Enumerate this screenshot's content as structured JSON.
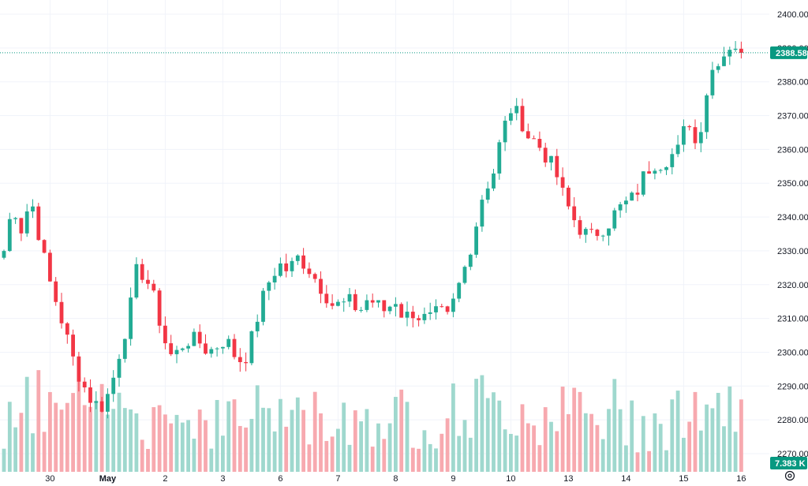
{
  "colors": {
    "up": "#22ab94",
    "down": "#f23645",
    "volume_up": "#9fd8ce",
    "volume_down": "#f7a9af",
    "price_tag": "#089981",
    "grid": "#f0f3fa",
    "text": "#131722"
  },
  "icons": {
    "settings": "gear-icon"
  },
  "chart_data": {
    "type": "candlestick",
    "price_axis": {
      "min": 2268,
      "max": 2402,
      "ticks": [
        "2400.00",
        "2390.00",
        "2380.00",
        "2370.00",
        "2360.00",
        "2350.00",
        "2340.00",
        "2330.00",
        "2320.00",
        "2310.00",
        "2300.00",
        "2290.00",
        "2280.00",
        "2270.00"
      ],
      "tick_values": [
        2400,
        2390,
        2380,
        2370,
        2360,
        2350,
        2340,
        2330,
        2320,
        2310,
        2300,
        2290,
        2280,
        2270
      ]
    },
    "time_axis": {
      "labels": [
        {
          "label": "30",
          "bar": 8,
          "bold": false
        },
        {
          "label": "May",
          "bar": 18,
          "bold": true
        },
        {
          "label": "2",
          "bar": 28,
          "bold": false
        },
        {
          "label": "3",
          "bar": 38,
          "bold": false
        },
        {
          "label": "6",
          "bar": 48,
          "bold": false
        },
        {
          "label": "7",
          "bar": 58,
          "bold": false
        },
        {
          "label": "8",
          "bar": 68,
          "bold": false
        },
        {
          "label": "9",
          "bar": 78,
          "bold": false
        },
        {
          "label": "10",
          "bar": 88,
          "bold": false
        },
        {
          "label": "13",
          "bar": 98,
          "bold": false
        },
        {
          "label": "14",
          "bar": 108,
          "bold": false
        },
        {
          "label": "15",
          "bar": 118,
          "bold": false
        },
        {
          "label": "16",
          "bar": 128,
          "bold": false
        }
      ]
    },
    "last_price": 2388.58,
    "last_price_label": "2388.58",
    "volume_label": "7.383 K",
    "volume_max": 11000,
    "close_path": [
      2330,
      2344,
      2336,
      2346,
      2334,
      2322,
      2314,
      2305,
      2296,
      2290,
      2285,
      2284,
      2289,
      2300,
      2310,
      2325,
      2322,
      2315,
      2304,
      2298,
      2302,
      2304,
      2303,
      2300,
      2302,
      2304,
      2299,
      2297,
      2305,
      2315,
      2322,
      2326,
      2324,
      2328,
      2326,
      2322,
      2318,
      2314,
      2314,
      2315,
      2312,
      2316,
      2314,
      2312,
      2316,
      2310,
      2312,
      2310,
      2310,
      2312,
      2310,
      2318,
      2326,
      2336,
      2348,
      2352,
      2364,
      2372,
      2370,
      2364,
      2362,
      2358,
      2354,
      2346,
      2340,
      2336,
      2334,
      2336,
      2338,
      2342,
      2344,
      2346,
      2352,
      2356,
      2356,
      2358,
      2360,
      2370,
      2360,
      2376,
      2386,
      2388,
      2392,
      2388.58
    ]
  }
}
